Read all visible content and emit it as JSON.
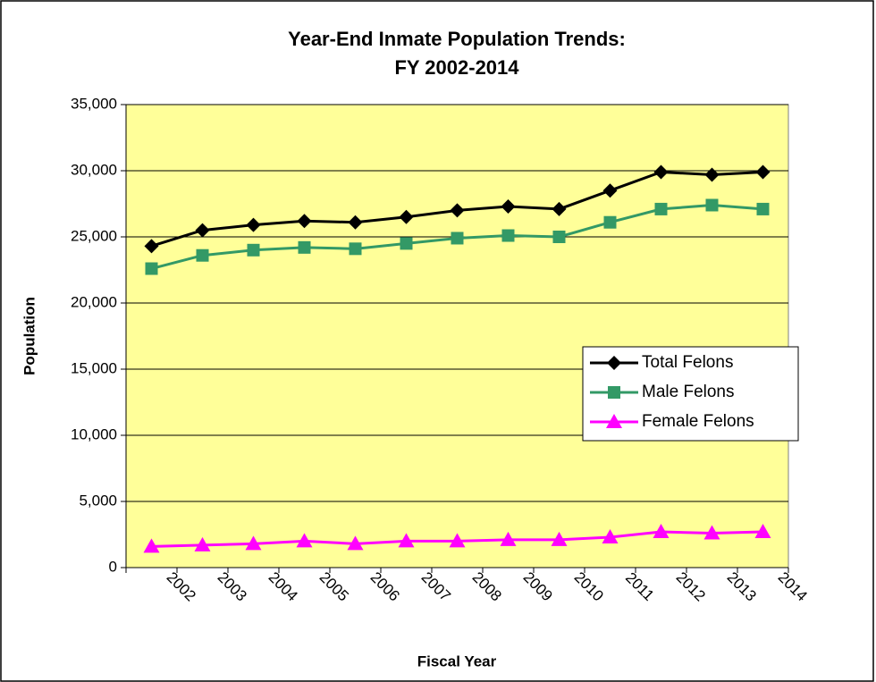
{
  "chart_data": {
    "type": "line",
    "title": [
      "Year-End Inmate Population Trends:",
      "FY 2002-2014"
    ],
    "x_label": "Fiscal Year",
    "y_label": "Population",
    "categories": [
      "2002",
      "2003",
      "2004",
      "2005",
      "2006",
      "2007",
      "2008",
      "2009",
      "2010",
      "2011",
      "2012",
      "2013",
      "2014"
    ],
    "series": [
      {
        "name": "Total Felons",
        "color": "#000000",
        "marker": "diamond",
        "values": [
          24300,
          25500,
          25900,
          26200,
          26100,
          26500,
          27000,
          27300,
          27100,
          28500,
          29900,
          29700,
          29900
        ]
      },
      {
        "name": "Male Felons",
        "color": "#339966",
        "marker": "square",
        "values": [
          22600,
          23600,
          24000,
          24200,
          24100,
          24500,
          24900,
          25100,
          25000,
          26100,
          27100,
          27400,
          27100
        ]
      },
      {
        "name": "Female Felons",
        "color": "#ff00ff",
        "marker": "triangle",
        "values": [
          1600,
          1700,
          1800,
          2000,
          1800,
          2000,
          2000,
          2100,
          2100,
          2300,
          2700,
          2600,
          2700
        ]
      }
    ],
    "ylim": [
      0,
      35000
    ],
    "yticks": [
      0,
      {
        "value": 5000,
        "label": "5,000"
      },
      {
        "value": 10000,
        "label": "10,000"
      },
      {
        "value": 15000,
        "label": "15,000"
      },
      {
        "value": 20000,
        "label": "20,000"
      },
      {
        "value": 25000,
        "label": "25,000"
      },
      {
        "value": 30000,
        "label": "30,000"
      },
      {
        "value": 35000,
        "label": "35,000"
      }
    ],
    "grid": true,
    "plot_background": "#ffff99",
    "legend_position": "right"
  }
}
